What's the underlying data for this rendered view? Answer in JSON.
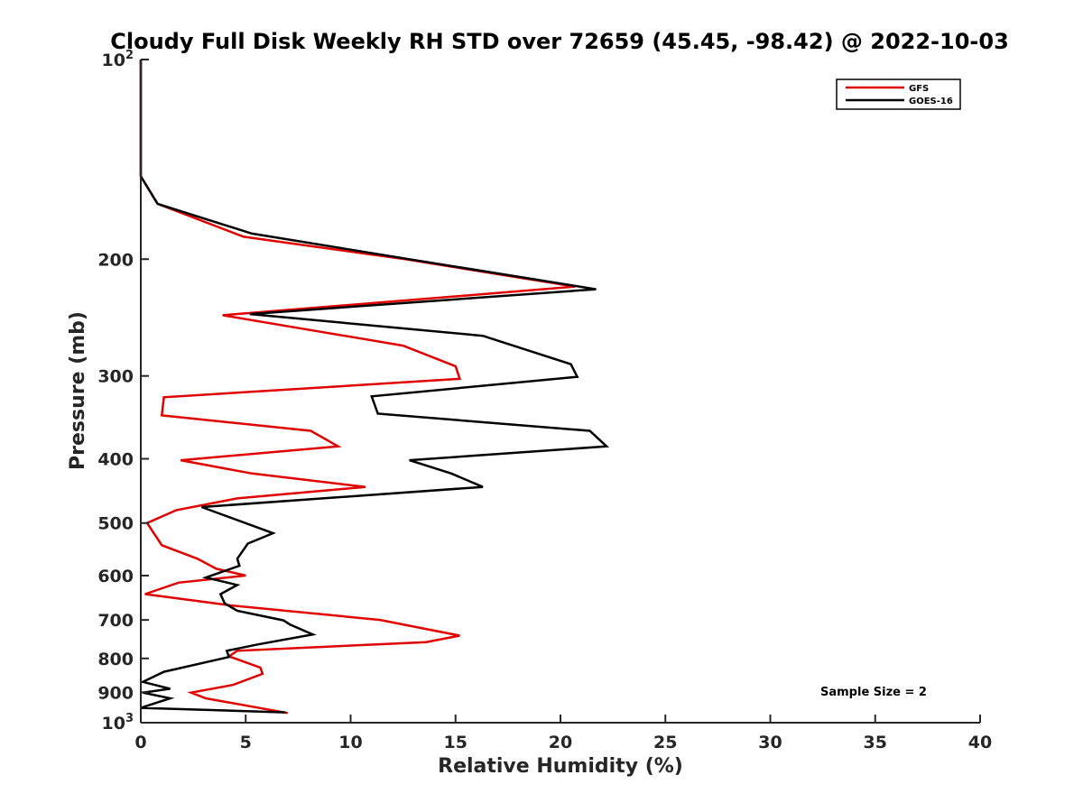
{
  "chart_data": {
    "type": "line",
    "title": "Cloudy Full Disk Weekly RH STD over 72659 (45.45, -98.42) @ 2022-10-03",
    "xlabel": "Relative Humidity (%)",
    "ylabel": "Pressure (mb)",
    "xlim": [
      0,
      40
    ],
    "ylim": [
      100,
      1000
    ],
    "y_scale": "log",
    "y_reversed": true,
    "x_ticks": [
      "0",
      "5",
      "10",
      "15",
      "20",
      "25",
      "30",
      "35",
      "40"
    ],
    "y_ticks": [
      {
        "value": 100,
        "label": "10",
        "sup": "2"
      },
      {
        "value": 200,
        "label": "200",
        "sup": ""
      },
      {
        "value": 300,
        "label": "300",
        "sup": ""
      },
      {
        "value": 400,
        "label": "400",
        "sup": ""
      },
      {
        "value": 500,
        "label": "500",
        "sup": ""
      },
      {
        "value": 600,
        "label": "600",
        "sup": ""
      },
      {
        "value": 700,
        "label": "700",
        "sup": ""
      },
      {
        "value": 800,
        "label": "800",
        "sup": ""
      },
      {
        "value": 900,
        "label": "900",
        "sup": ""
      },
      {
        "value": 1000,
        "label": "10",
        "sup": "3"
      }
    ],
    "legend": "top-right",
    "grid": false,
    "annotation": "Sample Size = 2",
    "series": [
      {
        "name": "GFS",
        "color": "#e00000",
        "points": [
          [
            0.0,
            100
          ],
          [
            0.0,
            125
          ],
          [
            0.0,
            150
          ],
          [
            0.8,
            165
          ],
          [
            4.9,
            185
          ],
          [
            12.6,
            200
          ],
          [
            20.7,
            220
          ],
          [
            3.9,
            243
          ],
          [
            12.5,
            270
          ],
          [
            15.0,
            290
          ],
          [
            15.2,
            303
          ],
          [
            1.1,
            323
          ],
          [
            1.0,
            344
          ],
          [
            8.1,
            363
          ],
          [
            9.4,
            383
          ],
          [
            1.9,
            402
          ],
          [
            5.3,
            421
          ],
          [
            10.7,
            441
          ],
          [
            4.6,
            459
          ],
          [
            1.7,
            478
          ],
          [
            0.3,
            500
          ],
          [
            1.0,
            540
          ],
          [
            2.7,
            566
          ],
          [
            3.6,
            586
          ],
          [
            5.0,
            600
          ],
          [
            1.8,
            615
          ],
          [
            0.2,
            640
          ],
          [
            4.2,
            665
          ],
          [
            11.4,
            700
          ],
          [
            15.2,
            739
          ],
          [
            13.6,
            756
          ],
          [
            4.6,
            779
          ],
          [
            4.2,
            794
          ],
          [
            5.7,
            826
          ],
          [
            5.8,
            844
          ],
          [
            4.4,
            877
          ],
          [
            2.4,
            901
          ],
          [
            3.1,
            919
          ],
          [
            7.0,
            967
          ]
        ]
      },
      {
        "name": "GOES-16",
        "color": "#000000",
        "points": [
          [
            0.0,
            100
          ],
          [
            0.0,
            125
          ],
          [
            0.0,
            150
          ],
          [
            0.8,
            165
          ],
          [
            5.3,
            183
          ],
          [
            12.8,
            200
          ],
          [
            21.7,
            222
          ],
          [
            5.2,
            242
          ],
          [
            16.3,
            261
          ],
          [
            20.5,
            288
          ],
          [
            20.8,
            301
          ],
          [
            11.0,
            322
          ],
          [
            11.3,
            342
          ],
          [
            21.4,
            363
          ],
          [
            22.2,
            383
          ],
          [
            12.8,
            402
          ],
          [
            14.8,
            421
          ],
          [
            16.3,
            441
          ],
          [
            2.9,
            473
          ],
          [
            6.3,
            518
          ],
          [
            5.1,
            537
          ],
          [
            4.6,
            566
          ],
          [
            4.7,
            580
          ],
          [
            3.1,
            604
          ],
          [
            4.6,
            620
          ],
          [
            3.8,
            640
          ],
          [
            4.0,
            661
          ],
          [
            4.6,
            678
          ],
          [
            6.8,
            701
          ],
          [
            7.1,
            711
          ],
          [
            8.2,
            736
          ],
          [
            5.6,
            762
          ],
          [
            4.1,
            779
          ],
          [
            4.2,
            796
          ],
          [
            1.1,
            838
          ],
          [
            0.1,
            868
          ],
          [
            1.4,
            889
          ],
          [
            0.1,
            901
          ],
          [
            1.4,
            919
          ],
          [
            0.0,
            950
          ],
          [
            6.9,
            965
          ]
        ]
      }
    ]
  }
}
